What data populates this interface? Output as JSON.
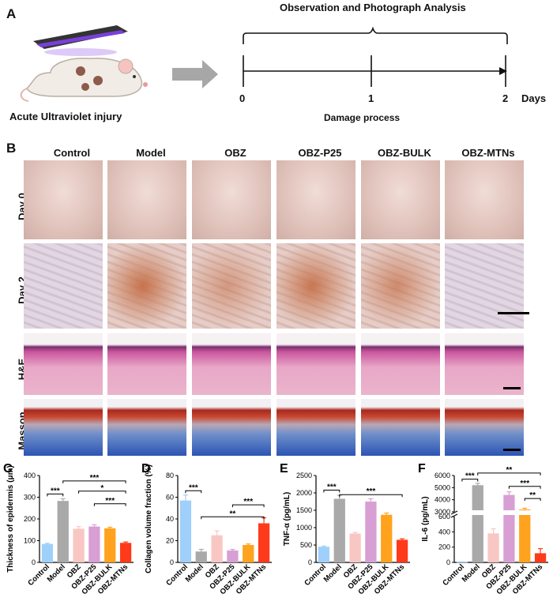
{
  "panelA": {
    "letter": "A",
    "title": "Observation and Photograph Analysis",
    "caption": "Acute Ultraviolet injury",
    "timeline_ticks": [
      "0",
      "1",
      "2"
    ],
    "days_label": "Days",
    "process_label": "Damage process"
  },
  "panelB": {
    "letter": "B",
    "columns": [
      "Control",
      "Model",
      "OBZ",
      "OBZ-P25",
      "OBZ-BULK",
      "OBZ-MTNs"
    ],
    "rows": [
      "Day 0",
      "Day 2",
      "H&E",
      "Masson"
    ]
  },
  "colors": {
    "Control": "#9fd0fb",
    "Model": "#a9a9a9",
    "OBZ": "#f9c7c3",
    "OBZ-P25": "#d89fd4",
    "OBZ-BULK": "#ffa21d",
    "OBZ-MTNs": "#ff3a1a"
  },
  "chart_data": [
    {
      "letter": "C",
      "type": "bar",
      "categories": [
        "Control",
        "Model",
        "OBZ",
        "OBZ-P25",
        "OBZ-BULK",
        "OBZ-MTNs"
      ],
      "values": [
        85,
        283,
        155,
        165,
        157,
        90
      ],
      "errors": [
        3,
        10,
        10,
        8,
        5,
        4
      ],
      "ylabel": "Thickness of epidermis (μm)",
      "ylim": [
        0,
        400
      ],
      "yticks": [
        "0",
        "100",
        "200",
        "300",
        "400"
      ],
      "significance": [
        {
          "from": 0,
          "to": 1,
          "label": "***",
          "level": 315
        },
        {
          "from": 1,
          "to": 5,
          "label": "***",
          "level": 375
        },
        {
          "from": 2,
          "to": 5,
          "label": "*",
          "level": 328
        },
        {
          "from": 3,
          "to": 5,
          "label": "***",
          "level": 270
        }
      ]
    },
    {
      "letter": "D",
      "type": "bar",
      "categories": [
        "Control",
        "Model",
        "OBZ",
        "OBZ-P25",
        "OBZ-BULK",
        "OBZ-MTNs"
      ],
      "values": [
        57,
        10,
        25,
        11,
        16,
        36
      ],
      "errors": [
        5,
        2,
        4,
        1,
        1,
        5
      ],
      "ylabel": "Collagen volume fraction (%)",
      "ylim": [
        0,
        80
      ],
      "yticks": [
        "0",
        "20",
        "40",
        "60",
        "80"
      ],
      "significance": [
        {
          "from": 0,
          "to": 1,
          "label": "***",
          "level": 66
        },
        {
          "from": 1,
          "to": 5,
          "label": "**",
          "level": 42
        },
        {
          "from": 3,
          "to": 5,
          "label": "***",
          "level": 53
        }
      ]
    },
    {
      "letter": "E",
      "type": "bar",
      "categories": [
        "Control",
        "Model",
        "OBZ",
        "OBZ-P25",
        "OBZ-BULK",
        "OBZ-MTNs"
      ],
      "values": [
        450,
        1830,
        830,
        1750,
        1370,
        650
      ],
      "errors": [
        20,
        100,
        30,
        80,
        50,
        30
      ],
      "ylabel": "TNF-α  (pg/mL)",
      "ylim": [
        0,
        2500
      ],
      "yticks": [
        "0",
        "500",
        "1000",
        "1500",
        "2000",
        "2500"
      ],
      "significance": [
        {
          "from": 0,
          "to": 1,
          "label": "***",
          "level": 2080
        },
        {
          "from": 1,
          "to": 5,
          "label": "***",
          "level": 1950
        }
      ]
    },
    {
      "letter": "F",
      "type": "bar",
      "categories": [
        "Control",
        "Model",
        "OBZ",
        "OBZ-P25",
        "OBZ-BULK",
        "OBZ-MTNs"
      ],
      "values": [
        5,
        5200,
        380,
        4400,
        3200,
        120
      ],
      "errors": [
        2,
        150,
        60,
        250,
        100,
        60
      ],
      "ylabel": "IL-6  (pg/mL)",
      "ylim": [
        0,
        6000
      ],
      "yticks_lower": [
        "0",
        "200",
        "400",
        "600"
      ],
      "yticks_upper": [
        "3000",
        "4000",
        "5000",
        "6000"
      ],
      "axis_break": [
        600,
        3000
      ],
      "significance": [
        {
          "from": 0,
          "to": 1,
          "label": "***",
          "level": 5700
        },
        {
          "from": 1,
          "to": 5,
          "label": "**",
          "level": 6200
        },
        {
          "from": 3,
          "to": 5,
          "label": "***",
          "level": 5100
        },
        {
          "from": 4,
          "to": 5,
          "label": "**",
          "level": 4100
        }
      ]
    }
  ]
}
